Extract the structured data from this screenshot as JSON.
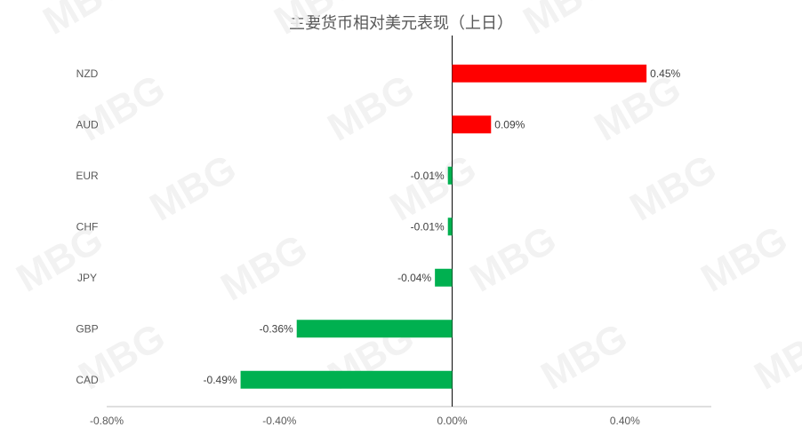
{
  "chart_data": {
    "type": "bar",
    "orientation": "horizontal",
    "title": "主要货币相对美元表现（上日）",
    "categories": [
      "NZD",
      "AUD",
      "EUR",
      "CHF",
      "JPY",
      "GBP",
      "CAD"
    ],
    "values": [
      0.45,
      0.09,
      -0.01,
      -0.01,
      -0.04,
      -0.36,
      -0.49
    ],
    "data_labels": [
      "0.45%",
      "0.09%",
      "-0.01%",
      "-0.01%",
      "-0.04%",
      "-0.36%",
      "-0.49%"
    ],
    "xlim": [
      -0.8,
      0.6
    ],
    "xticks": [
      -0.8,
      -0.4,
      0.0,
      0.4
    ],
    "xtick_labels": [
      "-0.80%",
      "-0.40%",
      "0.00%",
      "0.40%"
    ],
    "colors": {
      "positive": "#ff0000",
      "negative": "#00b050"
    },
    "grid": false,
    "legend": "none"
  },
  "watermark": "MBG"
}
